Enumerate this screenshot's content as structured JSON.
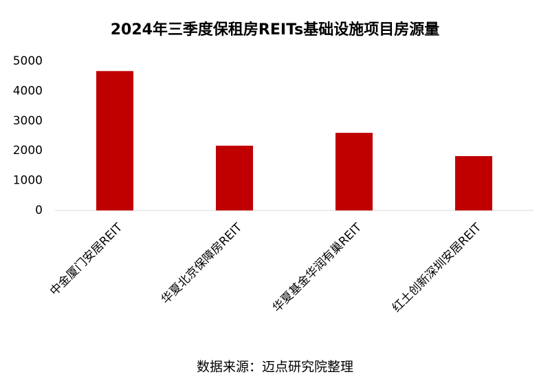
{
  "chart_data": {
    "type": "bar",
    "title": "2024年三季度保租房REITs基础设施项目房源量",
    "categories": [
      "中金厦门安居REIT",
      "华夏北京保障房REIT",
      "华夏基金华润有巢REIT",
      "红土创新深圳安居REIT"
    ],
    "values": [
      4670,
      2170,
      2600,
      1820
    ],
    "color": "#c00000",
    "ylim": [
      0,
      5000
    ],
    "yticks": [
      0,
      1000,
      2000,
      3000,
      4000,
      5000
    ],
    "grid": false,
    "source": "数据来源：迈点研究院整理"
  }
}
